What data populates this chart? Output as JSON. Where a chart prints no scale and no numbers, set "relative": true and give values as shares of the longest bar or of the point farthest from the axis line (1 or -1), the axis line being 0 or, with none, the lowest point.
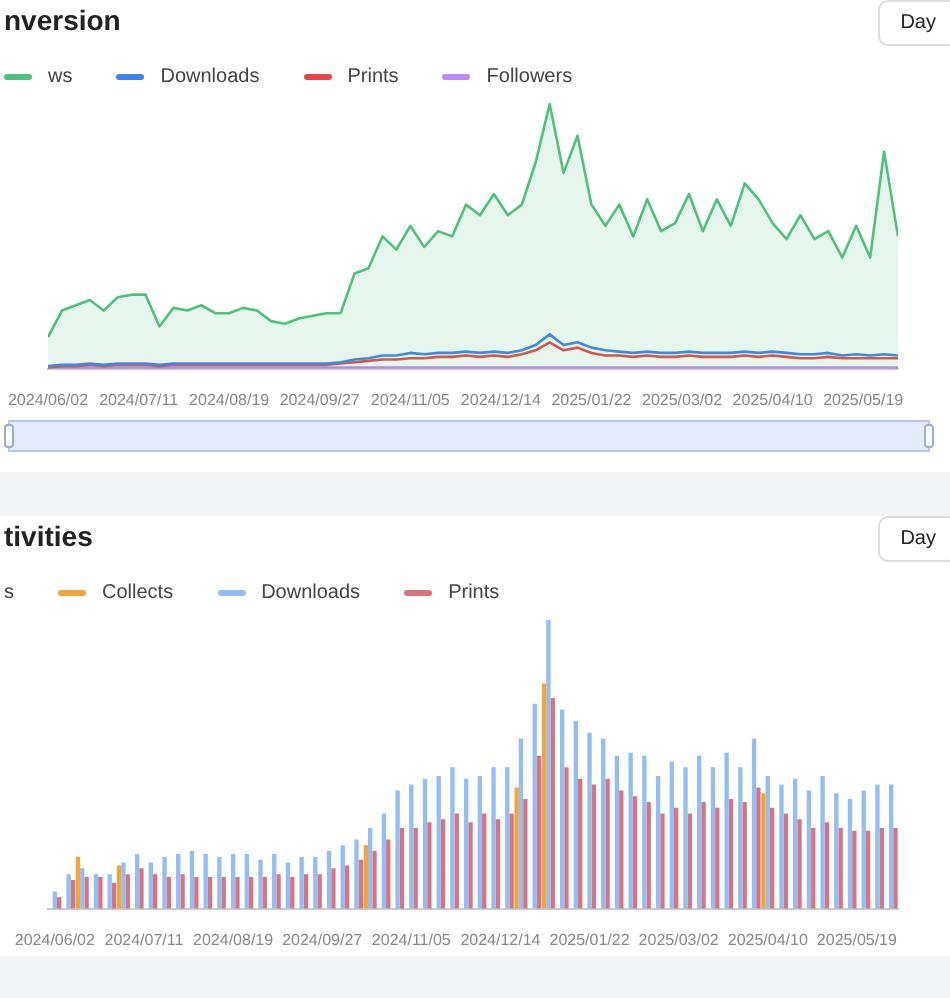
{
  "chart_data": [
    {
      "type": "line",
      "title": "nversion",
      "relative": true,
      "legend": "top left",
      "annotations": [
        "Day"
      ],
      "x": [
        "2024-06-02",
        "2024-06-08",
        "2024-06-14",
        "2024-06-20",
        "2024-06-26",
        "2024-07-02",
        "2024-07-08",
        "2024-07-14",
        "2024-07-20",
        "2024-07-26",
        "2024-08-01",
        "2024-08-07",
        "2024-08-13",
        "2024-08-19",
        "2024-08-25",
        "2024-08-31",
        "2024-09-06",
        "2024-09-12",
        "2024-09-18",
        "2024-09-24",
        "2024-09-30",
        "2024-10-06",
        "2024-10-12",
        "2024-10-18",
        "2024-10-24",
        "2024-10-30",
        "2024-11-05",
        "2024-11-11",
        "2024-11-17",
        "2024-11-23",
        "2024-11-29",
        "2024-12-05",
        "2024-12-11",
        "2024-12-17",
        "2024-12-23",
        "2024-12-29",
        "2025-01-04",
        "2025-01-10",
        "2025-01-16",
        "2025-01-22",
        "2025-01-28",
        "2025-02-03",
        "2025-02-09",
        "2025-02-15",
        "2025-02-21",
        "2025-02-27",
        "2025-03-05",
        "2025-03-11",
        "2025-03-17",
        "2025-03-23",
        "2025-03-29",
        "2025-04-04",
        "2025-04-10",
        "2025-04-16",
        "2025-04-22",
        "2025-04-28",
        "2025-05-04",
        "2025-05-10",
        "2025-05-16",
        "2025-05-22",
        "2025-05-28",
        "2025-06-03"
      ],
      "xlim": [
        "2024-06-02",
        "2025-06-03"
      ],
      "xticks": [
        {
          "value": "2024-06-02",
          "label": "2024/06/02"
        },
        {
          "value": "2024-07-11",
          "label": "2024/07/11"
        },
        {
          "value": "2024-08-19",
          "label": "2024/08/19"
        },
        {
          "value": "2024-09-27",
          "label": "2024/09/27"
        },
        {
          "value": "2024-11-05",
          "label": "2024/11/05"
        },
        {
          "value": "2024-12-14",
          "label": "2024/12/14"
        },
        {
          "value": "2025-01-22",
          "label": "2025/01/22"
        },
        {
          "value": "2025-03-02",
          "label": "2025/03/02"
        },
        {
          "value": "2025-04-10",
          "label": "2025/04/10"
        },
        {
          "value": "2025-05-19",
          "label": "2025/05/19"
        }
      ],
      "series": [
        {
          "name": "ws",
          "type": "area",
          "color": "#4cc27a",
          "values": [
            0.12,
            0.22,
            0.24,
            0.26,
            0.22,
            0.27,
            0.28,
            0.28,
            0.16,
            0.23,
            0.22,
            0.24,
            0.21,
            0.21,
            0.23,
            0.22,
            0.18,
            0.17,
            0.19,
            0.2,
            0.21,
            0.21,
            0.36,
            0.38,
            0.5,
            0.45,
            0.54,
            0.46,
            0.52,
            0.5,
            0.62,
            0.58,
            0.66,
            0.58,
            0.62,
            0.78,
            1,
            0.74,
            0.88,
            0.62,
            0.54,
            0.62,
            0.5,
            0.64,
            0.52,
            0.55,
            0.66,
            0.52,
            0.64,
            0.54,
            0.7,
            0.64,
            0.55,
            0.49,
            0.58,
            0.49,
            0.52,
            0.42,
            0.54,
            0.42,
            0.82,
            0.5
          ]
        },
        {
          "name": "Downloads",
          "color": "#3b82f6",
          "values": [
            0.01,
            0.015,
            0.015,
            0.02,
            0.015,
            0.02,
            0.02,
            0.02,
            0.015,
            0.02,
            0.02,
            0.02,
            0.02,
            0.02,
            0.02,
            0.02,
            0.02,
            0.02,
            0.02,
            0.02,
            0.02,
            0.025,
            0.035,
            0.04,
            0.05,
            0.05,
            0.06,
            0.055,
            0.06,
            0.06,
            0.065,
            0.06,
            0.065,
            0.06,
            0.07,
            0.09,
            0.13,
            0.09,
            0.1,
            0.08,
            0.07,
            0.065,
            0.06,
            0.065,
            0.06,
            0.06,
            0.065,
            0.06,
            0.06,
            0.06,
            0.065,
            0.06,
            0.065,
            0.06,
            0.055,
            0.055,
            0.06,
            0.05,
            0.055,
            0.05,
            0.055,
            0.05
          ]
        },
        {
          "name": "Prints",
          "color": "#ef4444",
          "values": [
            0.005,
            0.01,
            0.01,
            0.015,
            0.01,
            0.015,
            0.015,
            0.015,
            0.01,
            0.015,
            0.015,
            0.015,
            0.015,
            0.015,
            0.015,
            0.015,
            0.015,
            0.015,
            0.015,
            0.015,
            0.015,
            0.02,
            0.025,
            0.03,
            0.035,
            0.035,
            0.04,
            0.04,
            0.045,
            0.045,
            0.05,
            0.045,
            0.05,
            0.045,
            0.055,
            0.07,
            0.1,
            0.07,
            0.08,
            0.06,
            0.05,
            0.05,
            0.045,
            0.05,
            0.045,
            0.045,
            0.05,
            0.045,
            0.045,
            0.045,
            0.05,
            0.045,
            0.05,
            0.045,
            0.04,
            0.04,
            0.045,
            0.04,
            0.04,
            0.04,
            0.04,
            0.04
          ]
        },
        {
          "name": "Followers",
          "color": "#c084fc",
          "values": [
            0.005,
            0.005,
            0.005,
            0.005,
            0.005,
            0.005,
            0.005,
            0.005,
            0.005,
            0.005,
            0.005,
            0.005,
            0.005,
            0.005,
            0.005,
            0.005,
            0.005,
            0.005,
            0.005,
            0.005,
            0.005,
            0.005,
            0.005,
            0.005,
            0.005,
            0.005,
            0.005,
            0.005,
            0.005,
            0.005,
            0.005,
            0.005,
            0.005,
            0.005,
            0.005,
            0.005,
            0.005,
            0.005,
            0.005,
            0.005,
            0.005,
            0.005,
            0.005,
            0.005,
            0.005,
            0.005,
            0.005,
            0.005,
            0.005,
            0.005,
            0.005,
            0.005,
            0.005,
            0.005,
            0.005,
            0.005,
            0.005,
            0.005,
            0.005,
            0.005,
            0.005,
            0.005
          ]
        }
      ]
    },
    {
      "type": "bar",
      "title": "tivities",
      "relative": true,
      "legend": "top left",
      "annotations": [
        "Day"
      ],
      "x": [
        "2024-06-02",
        "2024-06-08",
        "2024-06-14",
        "2024-06-20",
        "2024-06-26",
        "2024-07-02",
        "2024-07-08",
        "2024-07-14",
        "2024-07-20",
        "2024-07-26",
        "2024-08-01",
        "2024-08-07",
        "2024-08-13",
        "2024-08-19",
        "2024-08-25",
        "2024-08-31",
        "2024-09-06",
        "2024-09-12",
        "2024-09-18",
        "2024-09-24",
        "2024-09-30",
        "2024-10-06",
        "2024-10-12",
        "2024-10-18",
        "2024-10-24",
        "2024-10-30",
        "2024-11-05",
        "2024-11-11",
        "2024-11-17",
        "2024-11-23",
        "2024-11-29",
        "2024-12-05",
        "2024-12-11",
        "2024-12-17",
        "2024-12-23",
        "2024-12-29",
        "2025-01-04",
        "2025-01-10",
        "2025-01-16",
        "2025-01-22",
        "2025-01-28",
        "2025-02-03",
        "2025-02-09",
        "2025-02-15",
        "2025-02-21",
        "2025-02-27",
        "2025-03-05",
        "2025-03-11",
        "2025-03-17",
        "2025-03-23",
        "2025-03-29",
        "2025-04-04",
        "2025-04-10",
        "2025-04-16",
        "2025-04-22",
        "2025-04-28",
        "2025-05-04",
        "2025-05-10",
        "2025-05-16",
        "2025-05-22",
        "2025-05-28",
        "2025-06-03"
      ],
      "xlim": [
        "2024-05-30",
        "2025-06-06"
      ],
      "xticks": [
        {
          "value": "2024-06-02",
          "label": "2024/06/02"
        },
        {
          "value": "2024-07-11",
          "label": "2024/07/11"
        },
        {
          "value": "2024-08-19",
          "label": "2024/08/19"
        },
        {
          "value": "2024-09-27",
          "label": "2024/09/27"
        },
        {
          "value": "2024-11-05",
          "label": "2024/11/05"
        },
        {
          "value": "2024-12-14",
          "label": "2024/12/14"
        },
        {
          "value": "2025-01-22",
          "label": "2025/01/22"
        },
        {
          "value": "2025-03-02",
          "label": "2025/03/02"
        },
        {
          "value": "2025-04-10",
          "label": "2025/04/10"
        },
        {
          "value": "2025-05-19",
          "label": "2025/05/19"
        }
      ],
      "series": [
        {
          "name": "s",
          "values": [
            null,
            null,
            null,
            null,
            null,
            null,
            null,
            null,
            null,
            null,
            null,
            null,
            null,
            null,
            null,
            null,
            null,
            null,
            null,
            null,
            null,
            null,
            null,
            null,
            null,
            null,
            null,
            null,
            null,
            null,
            null,
            null,
            null,
            null,
            null,
            null,
            null,
            null,
            null,
            null,
            null,
            null,
            null,
            null,
            null,
            null,
            null,
            null,
            null,
            null,
            null,
            null,
            null,
            null,
            null,
            null,
            null,
            null,
            null,
            null,
            null,
            null
          ]
        },
        {
          "name": "Collects",
          "color": "#f0a63a",
          "values": [
            null,
            null,
            0.18,
            null,
            null,
            0.15,
            null,
            null,
            null,
            null,
            null,
            null,
            null,
            null,
            null,
            null,
            null,
            null,
            null,
            null,
            null,
            null,
            null,
            0.22,
            null,
            null,
            null,
            null,
            null,
            null,
            null,
            null,
            null,
            null,
            0.42,
            null,
            0.78,
            null,
            null,
            null,
            null,
            null,
            null,
            null,
            null,
            null,
            null,
            null,
            null,
            null,
            null,
            null,
            0.4,
            null,
            null,
            null,
            null,
            null,
            null,
            null,
            null,
            null
          ]
        },
        {
          "name": "Downloads",
          "color": "#93bdf5",
          "values": [
            0.06,
            0.12,
            0.14,
            0.12,
            0.12,
            0.16,
            0.19,
            0.16,
            0.18,
            0.19,
            0.2,
            0.19,
            0.18,
            0.19,
            0.19,
            0.17,
            0.19,
            0.16,
            0.18,
            0.18,
            0.2,
            0.22,
            0.24,
            0.28,
            0.33,
            0.41,
            0.43,
            0.45,
            0.46,
            0.49,
            0.45,
            0.46,
            0.49,
            0.49,
            0.59,
            0.71,
            1,
            0.69,
            0.65,
            0.61,
            0.59,
            0.53,
            0.54,
            0.53,
            0.46,
            0.51,
            0.49,
            0.53,
            0.49,
            0.54,
            0.49,
            0.59,
            0.46,
            0.43,
            0.45,
            0.41,
            0.46,
            0.4,
            0.38,
            0.41,
            0.43,
            0.43
          ]
        },
        {
          "name": "Prints",
          "color": "#d9747f",
          "values": [
            0.04,
            0.1,
            0.11,
            0.11,
            0.09,
            0.12,
            0.14,
            0.12,
            0.11,
            0.12,
            0.11,
            0.11,
            0.11,
            0.11,
            0.11,
            0.11,
            0.12,
            0.11,
            0.12,
            0.12,
            0.14,
            0.15,
            0.17,
            0.2,
            0.24,
            0.28,
            0.28,
            0.3,
            0.31,
            0.33,
            0.3,
            0.33,
            0.31,
            0.33,
            0.38,
            0.53,
            0.73,
            0.49,
            0.45,
            0.43,
            0.45,
            0.41,
            0.39,
            0.37,
            0.33,
            0.35,
            0.33,
            0.37,
            0.35,
            0.38,
            0.37,
            0.42,
            0.35,
            0.33,
            0.31,
            0.28,
            0.3,
            0.28,
            0.27,
            0.27,
            0.28,
            0.28
          ]
        }
      ]
    }
  ]
}
